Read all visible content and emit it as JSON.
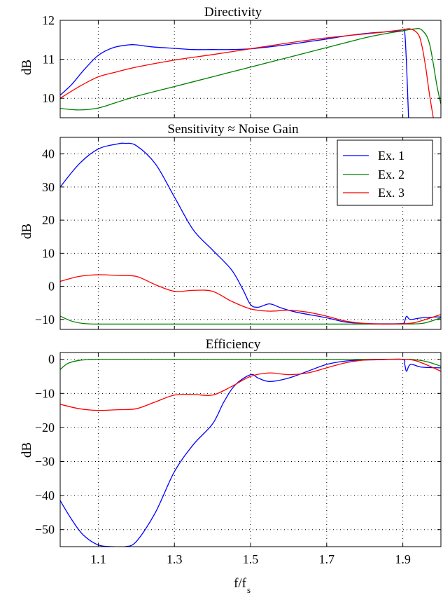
{
  "colors": {
    "ex1": "#0000ff",
    "ex2": "#008000",
    "ex3": "#ff0000"
  },
  "xlabel": "f/f",
  "xlabel_sub": "s",
  "legend": [
    "Ex. 1",
    "Ex. 2",
    "Ex. 3"
  ],
  "chart_data": [
    {
      "type": "line",
      "title": "Directivity",
      "ylabel": "dB",
      "xlim": [
        1.0,
        2.0
      ],
      "ylim": [
        9.5,
        12.0
      ],
      "xticks": [
        1.1,
        1.3,
        1.5,
        1.7,
        1.9
      ],
      "yticks": [
        10,
        11,
        12
      ],
      "grid": true,
      "series": [
        {
          "name": "Ex. 1",
          "color": "#0000ff",
          "x": [
            1.0,
            1.03,
            1.06,
            1.1,
            1.14,
            1.18,
            1.2,
            1.24,
            1.3,
            1.35,
            1.4,
            1.45,
            1.5,
            1.55,
            1.6,
            1.65,
            1.7,
            1.75,
            1.8,
            1.85,
            1.88,
            1.9,
            1.905,
            1.91,
            1.915
          ],
          "y": [
            10.08,
            10.35,
            10.7,
            11.1,
            11.3,
            11.37,
            11.37,
            11.32,
            11.28,
            11.25,
            11.25,
            11.25,
            11.27,
            11.32,
            11.38,
            11.45,
            11.52,
            11.6,
            11.66,
            11.7,
            11.72,
            11.73,
            11.7,
            10.8,
            9.5
          ]
        },
        {
          "name": "Ex. 2",
          "color": "#008000",
          "x": [
            1.0,
            1.05,
            1.1,
            1.15,
            1.2,
            1.3,
            1.4,
            1.5,
            1.6,
            1.7,
            1.8,
            1.85,
            1.9,
            1.93,
            1.95,
            1.97,
            1.99,
            2.0
          ],
          "y": [
            9.74,
            9.7,
            9.75,
            9.9,
            10.05,
            10.3,
            10.55,
            10.8,
            11.05,
            11.3,
            11.55,
            11.65,
            11.73,
            11.78,
            11.75,
            11.4,
            10.3,
            9.85
          ]
        },
        {
          "name": "Ex. 3",
          "color": "#ff0000",
          "x": [
            1.0,
            1.05,
            1.1,
            1.15,
            1.2,
            1.3,
            1.4,
            1.5,
            1.6,
            1.7,
            1.8,
            1.85,
            1.9,
            1.92,
            1.94,
            1.95,
            1.96,
            1.97,
            1.98
          ],
          "y": [
            10.0,
            10.3,
            10.55,
            10.68,
            10.8,
            10.98,
            11.12,
            11.27,
            11.42,
            11.55,
            11.65,
            11.7,
            11.76,
            11.78,
            11.65,
            11.35,
            10.8,
            10.1,
            9.5
          ]
        }
      ]
    },
    {
      "type": "line",
      "title": "Sensitivity ≈ Noise Gain",
      "ylabel": "dB",
      "xlim": [
        1.0,
        2.0
      ],
      "ylim": [
        -13,
        45
      ],
      "xticks": [
        1.1,
        1.3,
        1.5,
        1.7,
        1.9
      ],
      "yticks": [
        -10,
        0,
        10,
        20,
        30,
        40
      ],
      "grid": true,
      "legend_position": "top-right",
      "series": [
        {
          "name": "Ex. 1",
          "color": "#0000ff",
          "x": [
            1.0,
            1.05,
            1.1,
            1.15,
            1.17,
            1.2,
            1.25,
            1.3,
            1.35,
            1.4,
            1.45,
            1.48,
            1.5,
            1.52,
            1.55,
            1.58,
            1.62,
            1.7,
            1.75,
            1.8,
            1.85,
            1.9,
            1.905,
            1.91,
            1.92,
            1.95,
            2.0
          ],
          "y": [
            30,
            37,
            41.5,
            43,
            43.2,
            42.5,
            37,
            27,
            17,
            11,
            5,
            -1,
            -5.5,
            -6.3,
            -5.3,
            -6.5,
            -7.8,
            -9.5,
            -10.8,
            -11.2,
            -11.3,
            -11.2,
            -10.5,
            -9,
            -10,
            -9.5,
            -9.2
          ]
        },
        {
          "name": "Ex. 2",
          "color": "#008000",
          "x": [
            1.0,
            1.03,
            1.06,
            1.1,
            1.2,
            1.4,
            1.6,
            1.8,
            1.9,
            1.95,
            1.98,
            2.0
          ],
          "y": [
            -9,
            -10.5,
            -11.2,
            -11.4,
            -11.4,
            -11.4,
            -11.4,
            -11.4,
            -11.4,
            -11.2,
            -10.3,
            -9.5
          ]
        },
        {
          "name": "Ex. 3",
          "color": "#ff0000",
          "x": [
            1.0,
            1.05,
            1.1,
            1.15,
            1.2,
            1.25,
            1.3,
            1.35,
            1.4,
            1.45,
            1.5,
            1.55,
            1.6,
            1.65,
            1.7,
            1.75,
            1.8,
            1.85,
            1.9,
            1.93,
            1.96,
            2.0
          ],
          "y": [
            1.5,
            3,
            3.5,
            3.3,
            3,
            0.5,
            -1.5,
            -1.2,
            -1.5,
            -4.5,
            -6.8,
            -7.5,
            -7.2,
            -7.8,
            -9,
            -10.5,
            -11.2,
            -11.4,
            -11.3,
            -11,
            -10,
            -8.5
          ]
        }
      ]
    },
    {
      "type": "line",
      "title": "Efficiency",
      "ylabel": "dB",
      "xlim": [
        1.0,
        2.0
      ],
      "ylim": [
        -55,
        2
      ],
      "xticks": [
        1.1,
        1.3,
        1.5,
        1.7,
        1.9
      ],
      "yticks": [
        -50,
        -40,
        -30,
        -20,
        -10,
        0
      ],
      "grid": true,
      "series": [
        {
          "name": "Ex. 1",
          "color": "#0000ff",
          "x": [
            1.0,
            1.03,
            1.06,
            1.1,
            1.14,
            1.17,
            1.2,
            1.25,
            1.3,
            1.35,
            1.4,
            1.43,
            1.46,
            1.5,
            1.52,
            1.55,
            1.6,
            1.65,
            1.7,
            1.75,
            1.8,
            1.85,
            1.9,
            1.905,
            1.91,
            1.92,
            1.95,
            2.0
          ],
          "y": [
            -41.5,
            -47,
            -51.5,
            -54.5,
            -55,
            -55,
            -53.5,
            -45,
            -33,
            -25,
            -19,
            -12.5,
            -7.5,
            -4.5,
            -5.5,
            -6.5,
            -5.5,
            -3.5,
            -1.5,
            -0.5,
            -0.2,
            -0.1,
            0,
            -1.5,
            -3.5,
            -1.5,
            -2.3,
            -2.5
          ]
        },
        {
          "name": "Ex. 2",
          "color": "#008000",
          "x": [
            1.0,
            1.02,
            1.05,
            1.08,
            1.1,
            1.2,
            1.4,
            1.6,
            1.8,
            1.9,
            1.93,
            1.96,
            2.0
          ],
          "y": [
            -3,
            -1.2,
            -0.3,
            -0.05,
            0,
            0,
            0,
            0,
            0,
            0,
            -0.1,
            -0.6,
            -2
          ]
        },
        {
          "name": "Ex. 3",
          "color": "#ff0000",
          "x": [
            1.0,
            1.05,
            1.1,
            1.15,
            1.2,
            1.25,
            1.3,
            1.35,
            1.4,
            1.45,
            1.5,
            1.55,
            1.6,
            1.65,
            1.7,
            1.75,
            1.8,
            1.85,
            1.9,
            1.93,
            1.96,
            2.0
          ],
          "y": [
            -13.2,
            -14.5,
            -15,
            -14.8,
            -14.5,
            -12.5,
            -10.5,
            -10.3,
            -10.5,
            -8,
            -5,
            -4,
            -4.5,
            -4,
            -2.5,
            -1,
            -0.2,
            0,
            0,
            -0.3,
            -1.5,
            -3.5
          ]
        }
      ]
    }
  ]
}
